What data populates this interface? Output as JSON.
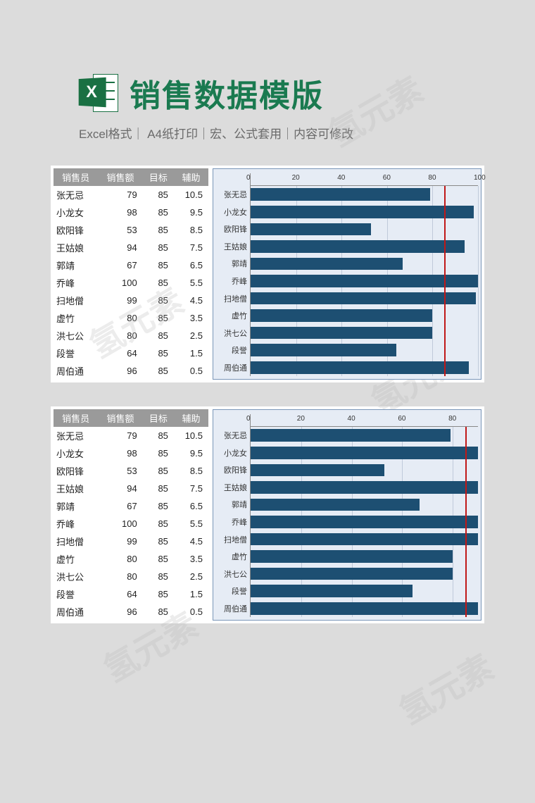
{
  "watermark": "氢元素",
  "header": {
    "logo_letter": "X",
    "title": "销售数据模版",
    "title_color": "#1a7a50"
  },
  "subtitle": "Excel格式｜ A4纸打印｜宏、公式套用｜内容可修改",
  "table": {
    "columns": [
      "销售员",
      "销售额",
      "目标",
      "辅助"
    ],
    "header_bg": "#9a9a9a",
    "header_fg": "#ffffff",
    "rows": [
      [
        "张无忌",
        79,
        85,
        10.5
      ],
      [
        "小龙女",
        98,
        85,
        9.5
      ],
      [
        "欧阳锋",
        53,
        85,
        8.5
      ],
      [
        "王姑娘",
        94,
        85,
        7.5
      ],
      [
        "郭靖",
        67,
        85,
        6.5
      ],
      [
        "乔峰",
        100,
        85,
        5.5
      ],
      [
        "扫地僧",
        99,
        85,
        4.5
      ],
      [
        "虚竹",
        80,
        85,
        3.5
      ],
      [
        "洪七公",
        80,
        85,
        2.5
      ],
      [
        "段誉",
        64,
        85,
        1.5
      ],
      [
        "周伯通",
        96,
        85,
        0.5
      ]
    ]
  },
  "chart_a": {
    "type": "bar",
    "orientation": "horizontal",
    "background_color": "#e6ecf5",
    "border_color": "#7a96b8",
    "bar_color": "#1d4f72",
    "grid_color": "rgba(120,140,170,0.35)",
    "target_line_color": "#c01818",
    "xlim": [
      0,
      100
    ],
    "xticks": [
      0,
      20,
      40,
      60,
      80,
      100
    ],
    "target_value": 85,
    "categories": [
      "张无忌",
      "小龙女",
      "欧阳锋",
      "王姑娘",
      "郭靖",
      "乔峰",
      "扫地僧",
      "虚竹",
      "洪七公",
      "段誉",
      "周伯通"
    ],
    "values": [
      79,
      98,
      53,
      94,
      67,
      100,
      99,
      80,
      80,
      64,
      96
    ]
  },
  "chart_b": {
    "type": "bar",
    "orientation": "horizontal",
    "background_color": "#e6ecf5",
    "border_color": "#7a96b8",
    "bar_color": "#1d4f72",
    "grid_color": "rgba(120,140,170,0.35)",
    "target_line_color": "#c01818",
    "xlim": [
      0,
      90
    ],
    "xticks": [
      0,
      20,
      40,
      60,
      80
    ],
    "xtick_extra_right_pad": 0.5,
    "target_value": 85,
    "categories": [
      "张无忌",
      "小龙女",
      "欧阳锋",
      "王姑娘",
      "郭靖",
      "乔峰",
      "扫地僧",
      "虚竹",
      "洪七公",
      "段誉",
      "周伯通"
    ],
    "values": [
      79,
      98,
      53,
      94,
      67,
      100,
      99,
      80,
      80,
      64,
      96
    ]
  }
}
